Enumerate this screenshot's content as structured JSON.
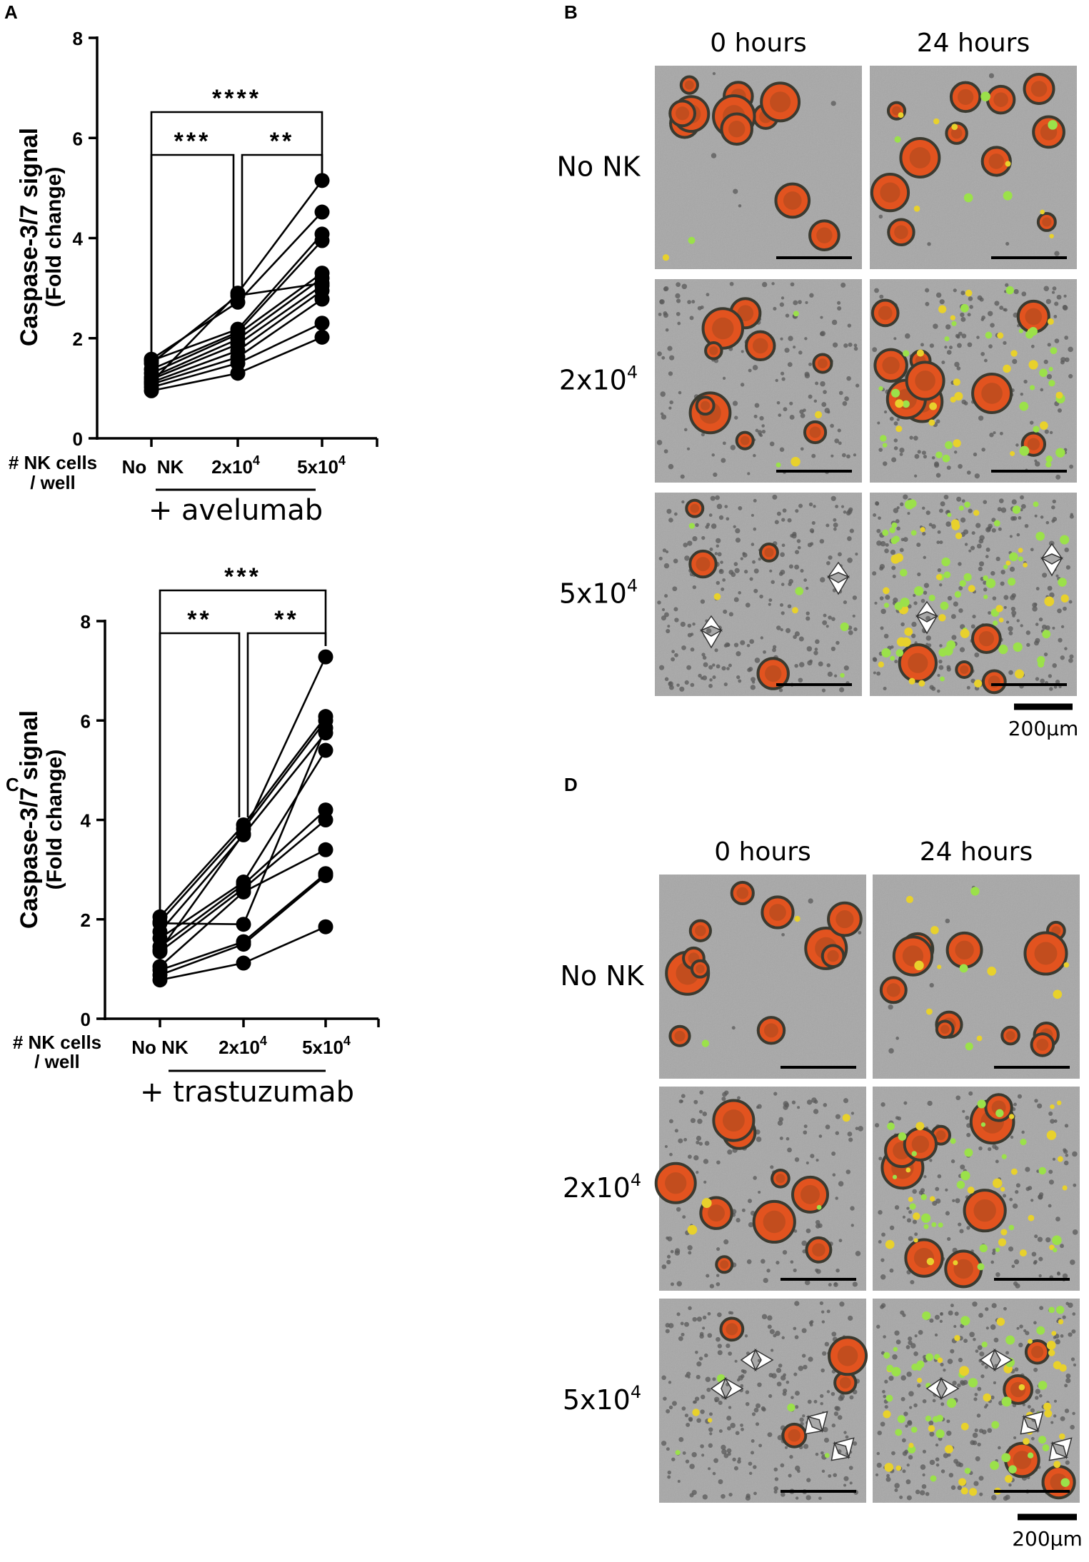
{
  "panels": {
    "A": {
      "letter": "A",
      "chart_data": {
        "type": "line",
        "ylabel_line1": "Caspase-3/7 signal",
        "ylabel_line2": "(Fold change)",
        "ylim": [
          0,
          8
        ],
        "yticks": [
          "0",
          "2",
          "4",
          "6",
          "8"
        ],
        "x_title_line1": "# NK cells",
        "x_title_line2": "/ well",
        "categories": [
          "No  NK",
          "2x10",
          "5x10"
        ],
        "category_exp": [
          "",
          "4",
          "4"
        ],
        "treatment": "+ avelumab",
        "series": [
          {
            "values": [
              0.95,
              1.3,
              2.02
            ]
          },
          {
            "values": [
              1.02,
              1.5,
              2.3
            ]
          },
          {
            "values": [
              1.08,
              1.62,
              2.78
            ]
          },
          {
            "values": [
              1.12,
              1.75,
              2.95
            ]
          },
          {
            "values": [
              1.18,
              1.88,
              3.05
            ]
          },
          {
            "values": [
              1.22,
              1.98,
              3.2
            ]
          },
          {
            "values": [
              1.3,
              2.08,
              3.3
            ]
          },
          {
            "values": [
              1.38,
              2.12,
              3.95
            ]
          },
          {
            "values": [
              1.55,
              2.18,
              4.08
            ]
          },
          {
            "values": [
              1.58,
              2.72,
              4.52
            ]
          },
          {
            "values": [
              1.12,
              2.9,
              5.15
            ]
          },
          {
            "values": [
              1.5,
              2.85,
              3.1
            ]
          }
        ],
        "brackets": [
          {
            "from": 0,
            "to": 1,
            "label": "***"
          },
          {
            "from": 1,
            "to": 2,
            "label": "**"
          },
          {
            "from": 0,
            "to": 2,
            "label": "****"
          }
        ]
      }
    },
    "C": {
      "letter": "C",
      "chart_data": {
        "type": "line",
        "ylabel_line1": "Caspase-3/7 signal",
        "ylabel_line2": "(Fold change)",
        "ylim": [
          0,
          8
        ],
        "yticks": [
          "0",
          "2",
          "4",
          "6",
          "8"
        ],
        "x_title_line1": "# NK cells",
        "x_title_line2": "/ well",
        "categories": [
          "No NK",
          "2x10",
          "5x10"
        ],
        "category_exp": [
          "",
          "4",
          "4"
        ],
        "treatment": "+ trastuzumab",
        "series": [
          {
            "values": [
              0.78,
              1.12,
              1.85
            ]
          },
          {
            "values": [
              0.88,
              1.5,
              2.88
            ]
          },
          {
            "values": [
              0.98,
              1.55,
              2.92
            ]
          },
          {
            "values": [
              1.05,
              2.55,
              3.4
            ]
          },
          {
            "values": [
              1.35,
              2.62,
              4.0
            ]
          },
          {
            "values": [
              1.45,
              2.7,
              4.2
            ]
          },
          {
            "values": [
              1.62,
              2.75,
              5.4
            ]
          },
          {
            "values": [
              1.75,
              3.7,
              5.75
            ]
          },
          {
            "values": [
              1.95,
              3.82,
              6.0
            ]
          },
          {
            "values": [
              2.05,
              3.9,
              6.08
            ]
          },
          {
            "values": [
              1.38,
              3.72,
              7.28
            ]
          },
          {
            "values": [
              1.92,
              1.9,
              5.85
            ]
          }
        ],
        "brackets": [
          {
            "from": 0,
            "to": 1,
            "label": "**"
          },
          {
            "from": 1,
            "to": 2,
            "label": "**"
          },
          {
            "from": 0,
            "to": 2,
            "label": "***"
          }
        ]
      }
    },
    "B": {
      "letter": "B",
      "col_headers": [
        "0 hours",
        "24 hours"
      ],
      "row_labels": [
        {
          "base": "No NK",
          "exp": ""
        },
        {
          "base": "2x10",
          "exp": "4"
        },
        {
          "base": "5x10",
          "exp": "4"
        }
      ],
      "scale_label": "200µm"
    },
    "D": {
      "letter": "D",
      "col_headers": [
        "0 hours",
        "24 hours"
      ],
      "row_labels": [
        {
          "base": "No NK",
          "exp": ""
        },
        {
          "base": "2x10",
          "exp": "4"
        },
        {
          "base": "5x10",
          "exp": "4"
        }
      ],
      "scale_label": "200µm"
    }
  },
  "colors": {
    "micro_bg": "#a7a7a7",
    "organoid_orange": "#e2531f",
    "organoid_rim": "#3a3a30",
    "apoptotic_green": "#9be14a",
    "apoptotic_yellow": "#e8d12c",
    "nk_cell_gray": "#5a5a5a"
  }
}
